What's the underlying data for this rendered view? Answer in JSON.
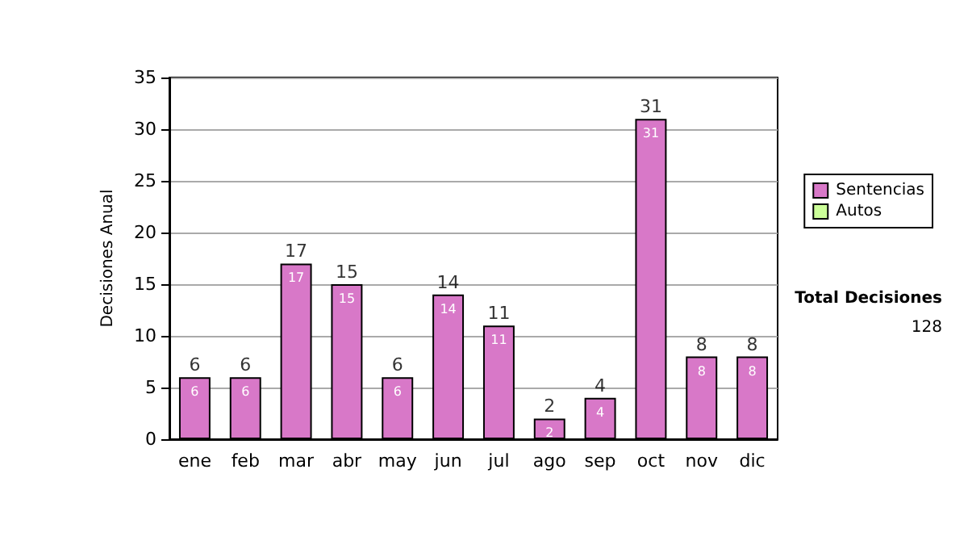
{
  "chart_data": {
    "type": "bar",
    "stacked": true,
    "ylabel": "Decisiones Anual",
    "categories": [
      "ene",
      "feb",
      "mar",
      "abr",
      "may",
      "jun",
      "jul",
      "ago",
      "sep",
      "oct",
      "nov",
      "dic"
    ],
    "series": [
      {
        "name": "Sentencias",
        "color": "#d878c8",
        "values": [
          6,
          6,
          17,
          15,
          6,
          14,
          11,
          2,
          4,
          31,
          8,
          8
        ]
      },
      {
        "name": "Autos",
        "color": "#ccff99",
        "values": [
          null,
          null,
          null,
          null,
          null,
          null,
          null,
          null,
          null,
          null,
          null,
          null
        ]
      }
    ],
    "totals": [
      "6",
      "6",
      "17",
      "15",
      "6",
      "14",
      "11",
      "2",
      "4",
      "31",
      "8",
      "8"
    ],
    "data_labels": true,
    "ylim": [
      0,
      35
    ],
    "yticks": [
      0,
      5,
      10,
      15,
      20,
      25,
      30,
      35
    ],
    "grid": "y",
    "legend": "right",
    "annotations": [
      "Total Decisiones",
      "128"
    ]
  }
}
